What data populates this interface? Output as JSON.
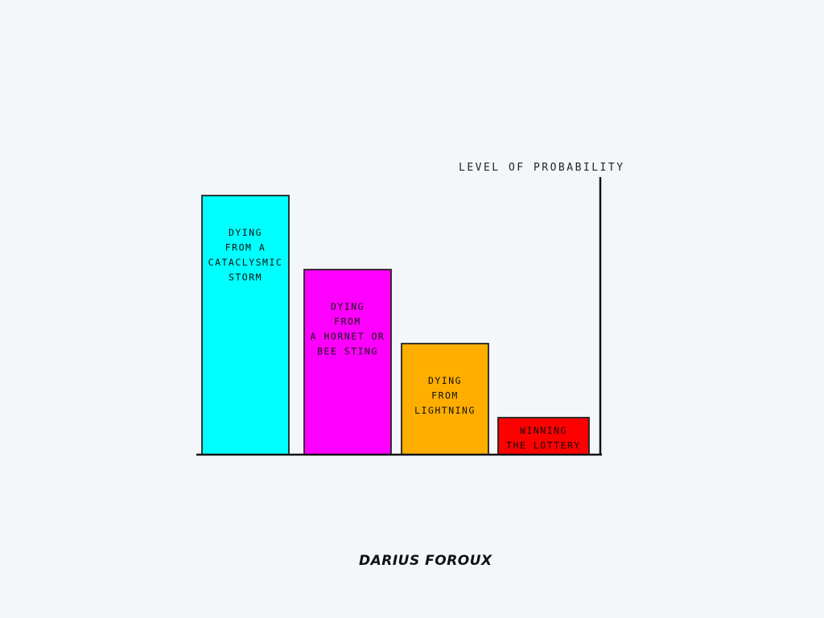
{
  "chart_data": {
    "type": "bar",
    "title": "",
    "xlabel": "",
    "ylabel": "LEVEL OF PROBABILITY",
    "ylim": [
      0,
      7.5
    ],
    "grid": false,
    "legend": "none",
    "categories": [
      [
        "DYING",
        "FROM A",
        "CATACLYSMIC",
        "STORM"
      ],
      [
        "DYING",
        "FROM",
        "A HORNET OR",
        "BEE STING"
      ],
      [
        "DYING",
        "FROM",
        "LIGHTNING"
      ],
      [
        "WINNING",
        "THE LOTTERY"
      ]
    ],
    "values": [
      7,
      5,
      3,
      1
    ],
    "colors": [
      "#00ffff",
      "#ff00ff",
      "#ffae00",
      "#ff0000"
    ]
  },
  "signature": "DARIUS FOROUX"
}
